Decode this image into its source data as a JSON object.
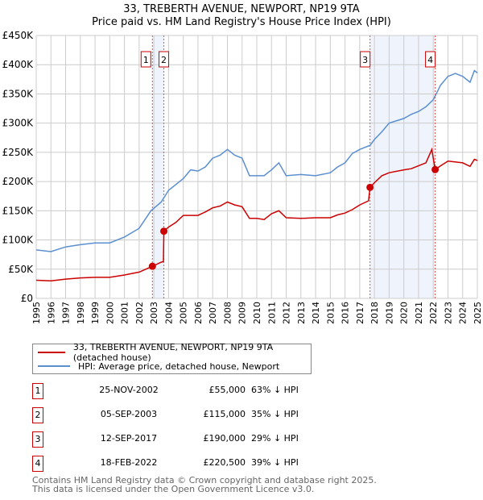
{
  "title": "33, TREBERTH AVENUE, NEWPORT, NP19 9TA",
  "subtitle": "Price paid vs. HM Land Registry's House Price Index (HPI)",
  "colors": {
    "property": "#cc0000",
    "hpi": "#5b8fd0",
    "shade": "#eef3fc",
    "grid": "#cccccc",
    "marker_border": "#cc0000"
  },
  "chart_data": {
    "type": "line",
    "title": "33, TREBERTH AVENUE, NEWPORT, NP19 9TA",
    "subtitle": "Price paid vs. HM Land Registry's House Price Index (HPI)",
    "xlim": [
      1995,
      2025
    ],
    "ylim": [
      0,
      450000
    ],
    "x_ticks": [
      "1995",
      "1996",
      "1997",
      "1998",
      "1999",
      "2000",
      "2001",
      "2002",
      "2003",
      "2004",
      "2005",
      "2006",
      "2007",
      "2008",
      "2009",
      "2010",
      "2011",
      "2012",
      "2013",
      "2014",
      "2015",
      "2016",
      "2017",
      "2018",
      "2019",
      "2020",
      "2021",
      "2022",
      "2023",
      "2024",
      "2025"
    ],
    "y_ticks": [
      {
        "v": 0,
        "label": "£0"
      },
      {
        "v": 50000,
        "label": "£50K"
      },
      {
        "v": 100000,
        "label": "£100K"
      },
      {
        "v": 150000,
        "label": "£150K"
      },
      {
        "v": 200000,
        "label": "£200K"
      },
      {
        "v": 250000,
        "label": "£250K"
      },
      {
        "v": 300000,
        "label": "£300K"
      },
      {
        "v": 350000,
        "label": "£350K"
      },
      {
        "v": 400000,
        "label": "£400K"
      },
      {
        "v": 450000,
        "label": "£450K"
      }
    ],
    "grid": true,
    "series": [
      {
        "name": "33, TREBERTH AVENUE, NEWPORT, NP19 9TA (detached house)",
        "color": "#cc0000",
        "x": [
          1995,
          1996,
          1997,
          1998,
          1999,
          2000,
          2001,
          2002,
          2002.9,
          2003.5,
          2003.65,
          2003.68,
          2004,
          2004.5,
          2005,
          2006,
          2006.5,
          2007,
          2007.5,
          2008,
          2008.5,
          2009,
          2009.5,
          2010,
          2010.5,
          2011,
          2011.5,
          2012,
          2013,
          2014,
          2015,
          2015.5,
          2016,
          2016.5,
          2017,
          2017.6,
          2017.7,
          2018,
          2018.5,
          2019,
          2020,
          2020.5,
          2021,
          2021.5,
          2021.9,
          2022.13,
          2022.5,
          2023,
          2024,
          2024.5,
          2024.8,
          2025
        ],
        "y": [
          31000,
          30000,
          33000,
          35000,
          36000,
          36000,
          40000,
          45000,
          55000,
          62000,
          63000,
          115000,
          122000,
          130000,
          142000,
          142000,
          148000,
          155000,
          158000,
          165000,
          160000,
          157000,
          137000,
          137000,
          135000,
          145000,
          150000,
          138000,
          137000,
          138000,
          138000,
          143000,
          146000,
          152000,
          160000,
          167000,
          190000,
          198000,
          210000,
          215000,
          220000,
          222000,
          227000,
          232000,
          255000,
          220500,
          227000,
          235000,
          232000,
          226000,
          238000,
          236000
        ]
      },
      {
        "name": "HPI: Average price, detached house, Newport",
        "color": "#5b8fd0",
        "x": [
          1995,
          1996,
          1997,
          1998,
          1999,
          2000,
          2001,
          2002,
          2002.8,
          2003.5,
          2004,
          2005,
          2005.5,
          2006,
          2006.5,
          2007,
          2007.5,
          2008,
          2008.5,
          2009,
          2009.5,
          2010,
          2010.5,
          2011,
          2011.5,
          2012,
          2013,
          2014,
          2015,
          2015.5,
          2016,
          2016.5,
          2017,
          2017.7,
          2018,
          2018.5,
          2019,
          2020,
          2020.5,
          2021,
          2021.5,
          2022,
          2022.3,
          2022.5,
          2023,
          2023.5,
          2024,
          2024.5,
          2024.8,
          2025
        ],
        "y": [
          83000,
          80000,
          88000,
          92000,
          95000,
          95000,
          105000,
          120000,
          150000,
          165000,
          185000,
          205000,
          220000,
          218000,
          225000,
          240000,
          245000,
          255000,
          245000,
          240000,
          210000,
          210000,
          210000,
          220000,
          232000,
          210000,
          212000,
          210000,
          215000,
          225000,
          232000,
          248000,
          255000,
          262000,
          272000,
          285000,
          300000,
          308000,
          315000,
          320000,
          328000,
          340000,
          355000,
          365000,
          380000,
          385000,
          380000,
          370000,
          390000,
          386000
        ]
      }
    ],
    "shaded_ranges": [
      [
        2002.9,
        2003.68
      ],
      [
        2017.7,
        2022.13
      ]
    ],
    "annotations": [
      {
        "label": "1",
        "x": 2002.9,
        "y": 55000
      },
      {
        "label": "2",
        "x": 2003.68,
        "y": 115000
      },
      {
        "label": "3",
        "x": 2017.7,
        "y": 190000
      },
      {
        "label": "4",
        "x": 2022.13,
        "y": 220500
      }
    ],
    "legend_placement": "below"
  },
  "legend": [
    {
      "label": "33, TREBERTH AVENUE, NEWPORT, NP19 9TA (detached house)",
      "color": "#cc0000"
    },
    {
      "label": "HPI: Average price, detached house, Newport",
      "color": "#5b8fd0"
    }
  ],
  "sales": [
    {
      "num": "1",
      "date": "25-NOV-2002",
      "price": "£55,000",
      "hpi": "63% ↓ HPI"
    },
    {
      "num": "2",
      "date": "05-SEP-2003",
      "price": "£115,000",
      "hpi": "35% ↓ HPI"
    },
    {
      "num": "3",
      "date": "12-SEP-2017",
      "price": "£190,000",
      "hpi": "29% ↓ HPI"
    },
    {
      "num": "4",
      "date": "18-FEB-2022",
      "price": "£220,500",
      "hpi": "39% ↓ HPI"
    }
  ],
  "footer": [
    "Contains HM Land Registry data © Crown copyright and database right 2025.",
    "This data is licensed under the Open Government Licence v3.0."
  ]
}
